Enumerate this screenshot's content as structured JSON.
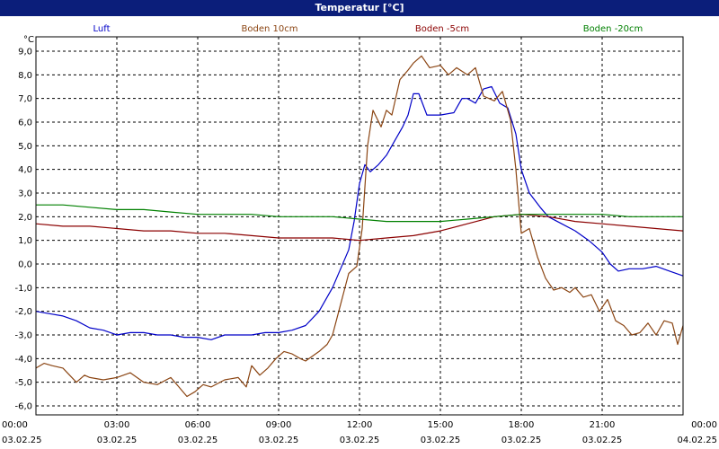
{
  "window": {
    "title": "Temperatur [°C]"
  },
  "chart_data": {
    "type": "line",
    "y_unit": "°C",
    "ylim": [
      -6.0,
      9.0
    ],
    "y_ticks": [
      "9,0",
      "8,0",
      "7,0",
      "6,0",
      "5,0",
      "4,0",
      "3,0",
      "2,0",
      "1,0",
      "0,0",
      "-1,0",
      "-2,0",
      "-3,0",
      "-4,0",
      "-5,0",
      "-6,0"
    ],
    "xlim": [
      0,
      24
    ],
    "x_ticks": [
      {
        "time": "00:00",
        "date": "03.02.25"
      },
      {
        "time": "03:00",
        "date": "03.02.25"
      },
      {
        "time": "06:00",
        "date": "03.02.25"
      },
      {
        "time": "09:00",
        "date": "03.02.25"
      },
      {
        "time": "12:00",
        "date": "03.02.25"
      },
      {
        "time": "15:00",
        "date": "03.02.25"
      },
      {
        "time": "18:00",
        "date": "03.02.25"
      },
      {
        "time": "21:00",
        "date": "03.02.25"
      },
      {
        "time": "00:00",
        "date": "04.02.25"
      }
    ],
    "grid": true,
    "legend_position": "top",
    "series": [
      {
        "name": "Luft",
        "color": "#0000c8",
        "x": [
          0,
          0.5,
          1,
          1.5,
          2,
          2.5,
          3,
          3.5,
          4,
          4.5,
          5,
          5.5,
          6,
          6.5,
          7,
          7.5,
          8,
          8.5,
          9,
          9.5,
          10,
          10.5,
          11,
          11.3,
          11.6,
          11.8,
          12,
          12.2,
          12.4,
          12.7,
          13,
          13.3,
          13.6,
          13.8,
          14,
          14.2,
          14.5,
          15,
          15.5,
          15.8,
          16,
          16.3,
          16.6,
          16.9,
          17.2,
          17.5,
          17.8,
          18,
          18.3,
          18.7,
          19,
          19.5,
          20,
          20.5,
          21,
          21.3,
          21.6,
          22,
          22.5,
          23,
          23.5,
          24
        ],
        "y": [
          -2.0,
          -2.1,
          -2.2,
          -2.4,
          -2.7,
          -2.8,
          -3.0,
          -2.9,
          -2.9,
          -3.0,
          -3.0,
          -3.1,
          -3.1,
          -3.2,
          -3.0,
          -3.0,
          -3.0,
          -2.9,
          -2.9,
          -2.8,
          -2.6,
          -2.0,
          -1.0,
          -0.2,
          0.6,
          1.8,
          3.4,
          4.2,
          3.9,
          4.2,
          4.6,
          5.2,
          5.8,
          6.3,
          7.2,
          7.2,
          6.3,
          6.3,
          6.4,
          7.0,
          7.0,
          6.8,
          7.4,
          7.5,
          6.8,
          6.6,
          5.5,
          4.0,
          3.0,
          2.4,
          2.0,
          1.7,
          1.4,
          1.0,
          0.5,
          0.0,
          -0.3,
          -0.2,
          -0.2,
          -0.1,
          -0.3,
          -0.5
        ]
      },
      {
        "name": "Boden 10cm",
        "color": "#8b4513",
        "x": [
          0,
          0.3,
          0.6,
          1,
          1.5,
          1.8,
          2,
          2.5,
          3,
          3.5,
          4,
          4.5,
          5,
          5.3,
          5.6,
          5.9,
          6.2,
          6.5,
          7,
          7.5,
          7.8,
          8,
          8.3,
          8.6,
          8.9,
          9.2,
          9.5,
          9.8,
          10,
          10.5,
          10.8,
          11,
          11.3,
          11.6,
          11.9,
          12.1,
          12.3,
          12.5,
          12.8,
          13,
          13.2,
          13.5,
          13.8,
          14,
          14.3,
          14.6,
          15,
          15.3,
          15.6,
          16,
          16.3,
          16.6,
          17,
          17.3,
          17.6,
          17.8,
          18,
          18.3,
          18.6,
          18.9,
          19.2,
          19.5,
          19.8,
          20,
          20.3,
          20.6,
          20.9,
          21.2,
          21.5,
          21.8,
          22.1,
          22.4,
          22.7,
          23,
          23.3,
          23.6,
          23.8,
          24
        ],
        "y": [
          -4.4,
          -4.2,
          -4.3,
          -4.4,
          -5.0,
          -4.7,
          -4.8,
          -4.9,
          -4.8,
          -4.6,
          -5.0,
          -5.1,
          -4.8,
          -5.2,
          -5.6,
          -5.4,
          -5.1,
          -5.2,
          -4.9,
          -4.8,
          -5.2,
          -4.3,
          -4.7,
          -4.4,
          -4.0,
          -3.7,
          -3.8,
          -4.0,
          -4.1,
          -3.7,
          -3.4,
          -3.0,
          -1.7,
          -0.4,
          -0.1,
          1.5,
          5.0,
          6.5,
          5.8,
          6.5,
          6.3,
          7.8,
          8.2,
          8.5,
          8.8,
          8.3,
          8.4,
          8.0,
          8.3,
          8.0,
          8.3,
          7.1,
          6.9,
          7.3,
          6.1,
          4.0,
          1.3,
          1.5,
          0.3,
          -0.6,
          -1.1,
          -1.0,
          -1.2,
          -1.0,
          -1.4,
          -1.3,
          -2.0,
          -1.5,
          -2.4,
          -2.6,
          -3.0,
          -2.9,
          -2.5,
          -3.0,
          -2.4,
          -2.5,
          -3.4,
          -2.6
        ]
      },
      {
        "name": "Boden -5cm",
        "color": "#8b0000",
        "x": [
          0,
          1,
          2,
          3,
          4,
          5,
          6,
          7,
          8,
          9,
          10,
          11,
          12,
          13,
          14,
          15,
          16,
          17,
          18,
          19,
          20,
          21,
          22,
          23,
          24
        ],
        "y": [
          1.7,
          1.6,
          1.6,
          1.5,
          1.4,
          1.4,
          1.3,
          1.3,
          1.2,
          1.1,
          1.1,
          1.1,
          1.0,
          1.1,
          1.2,
          1.4,
          1.7,
          2.0,
          2.1,
          2.0,
          1.8,
          1.7,
          1.6,
          1.5,
          1.4
        ]
      },
      {
        "name": "Boden -20cm",
        "color": "#008000",
        "x": [
          0,
          1,
          2,
          3,
          4,
          5,
          6,
          7,
          8,
          9,
          10,
          11,
          12,
          13,
          14,
          15,
          16,
          17,
          18,
          19,
          20,
          21,
          22,
          23,
          24
        ],
        "y": [
          2.5,
          2.5,
          2.4,
          2.3,
          2.3,
          2.2,
          2.1,
          2.1,
          2.1,
          2.0,
          2.0,
          2.0,
          1.9,
          1.8,
          1.8,
          1.8,
          1.9,
          2.0,
          2.1,
          2.1,
          2.1,
          2.1,
          2.0,
          2.0,
          2.0
        ]
      }
    ]
  }
}
